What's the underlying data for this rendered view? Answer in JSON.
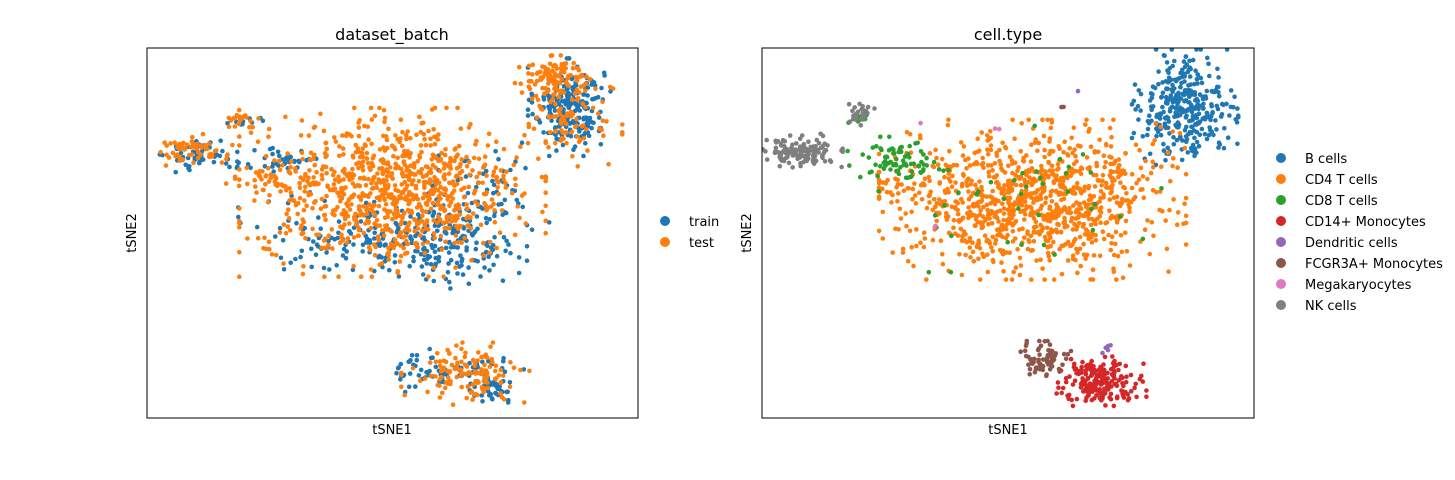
{
  "chart_data": [
    {
      "type": "scatter",
      "title": "dataset_batch",
      "xlabel": "tSNE1",
      "ylabel": "tSNE2",
      "xlim": [
        0,
        100
      ],
      "ylim": [
        0,
        100
      ],
      "ticks": false,
      "grid": false,
      "legend_position": "right",
      "series": [
        {
          "name": "train",
          "color": "#1f77b4",
          "clusters": [
            {
              "cx": 86,
              "cy": 84,
              "sx": 3.5,
              "sy": 5.5,
              "n": 230
            },
            {
              "cx": 11,
              "cy": 71,
              "sx": 3.5,
              "sy": 2.0,
              "n": 55
            },
            {
              "cx": 20,
              "cy": 80,
              "sx": 1.5,
              "sy": 1.0,
              "n": 10
            },
            {
              "cx": 28,
              "cy": 70,
              "sx": 4.0,
              "sy": 2.5,
              "n": 40
            },
            {
              "cx": 45,
              "cy": 49,
              "sx": 11.0,
              "sy": 5.0,
              "n": 150
            },
            {
              "cx": 63,
              "cy": 47,
              "sx": 6.0,
              "sy": 5.0,
              "n": 140
            },
            {
              "cx": 68,
              "cy": 60,
              "sx": 6.0,
              "sy": 6.0,
              "n": 70
            },
            {
              "cx": 58,
              "cy": 13,
              "sx": 3.5,
              "sy": 2.5,
              "n": 50
            },
            {
              "cx": 70,
              "cy": 10,
              "sx": 3.0,
              "sy": 3.0,
              "n": 60
            }
          ]
        },
        {
          "name": "test",
          "color": "#ff7f0e",
          "clusters": [
            {
              "cx": 83,
              "cy": 92,
              "sx": 3.5,
              "sy": 2.5,
              "n": 110
            },
            {
              "cx": 86,
              "cy": 80,
              "sx": 4.5,
              "sy": 5.0,
              "n": 90
            },
            {
              "cx": 9,
              "cy": 72,
              "sx": 3.5,
              "sy": 2.0,
              "n": 60
            },
            {
              "cx": 20,
              "cy": 81,
              "sx": 1.5,
              "sy": 1.0,
              "n": 20
            },
            {
              "cx": 25,
              "cy": 64,
              "sx": 4.0,
              "sy": 2.5,
              "n": 40
            },
            {
              "cx": 50,
              "cy": 61,
              "sx": 13.0,
              "sy": 9.5,
              "n": 900
            },
            {
              "cx": 65,
              "cy": 12,
              "sx": 5.5,
              "sy": 3.5,
              "n": 130
            }
          ]
        }
      ]
    },
    {
      "type": "scatter",
      "title": "cell.type",
      "xlabel": "tSNE1",
      "ylabel": "tSNE2",
      "xlim": [
        0,
        100
      ],
      "ylim": [
        0,
        100
      ],
      "ticks": false,
      "grid": false,
      "legend_position": "right",
      "series": [
        {
          "name": "B cells",
          "color": "#1f77b4",
          "clusters": [
            {
              "cx": 86,
              "cy": 84,
              "sx": 4.5,
              "sy": 6.5,
              "n": 340
            }
          ]
        },
        {
          "name": "CD4 T cells",
          "color": "#ff7f0e",
          "clusters": [
            {
              "cx": 55,
              "cy": 59,
              "sx": 13.0,
              "sy": 9.0,
              "n": 1050
            },
            {
              "cx": 28,
              "cy": 63,
              "sx": 3.0,
              "sy": 1.5,
              "n": 18
            }
          ]
        },
        {
          "name": "CD8 T cells",
          "color": "#2ca02c",
          "clusters": [
            {
              "cx": 27,
              "cy": 70,
              "sx": 4.0,
              "sy": 2.5,
              "n": 80
            },
            {
              "cx": 21,
              "cy": 81,
              "sx": 1.5,
              "sy": 1.0,
              "n": 12
            },
            {
              "cx": 50,
              "cy": 61,
              "sx": 13.0,
              "sy": 9.0,
              "n": 40
            }
          ]
        },
        {
          "name": "CD14+ Monocytes",
          "color": "#d62728",
          "clusters": [
            {
              "cx": 69,
              "cy": 10,
              "sx": 3.8,
              "sy": 2.8,
              "n": 200
            }
          ]
        },
        {
          "name": "Dendritic cells",
          "color": "#9467bd",
          "clusters": [
            {
              "cx": 70,
              "cy": 19,
              "sx": 0.5,
              "sy": 0.6,
              "n": 6
            },
            {
              "cx": 64,
              "cy": 88,
              "sx": 0.3,
              "sy": 0.3,
              "n": 1
            }
          ]
        },
        {
          "name": "FCGR3A+ Monocytes",
          "color": "#8c564b",
          "clusters": [
            {
              "cx": 57,
              "cy": 16,
              "sx": 2.5,
              "sy": 2.0,
              "n": 70
            },
            {
              "cx": 61,
              "cy": 84,
              "sx": 0.5,
              "sy": 0.5,
              "n": 2
            }
          ]
        },
        {
          "name": "Megakaryocytes",
          "color": "#e377c2",
          "clusters": [
            {
              "cx": 32,
              "cy": 80,
              "sx": 0.3,
              "sy": 0.3,
              "n": 1
            },
            {
              "cx": 48,
              "cy": 78,
              "sx": 0.5,
              "sy": 0.5,
              "n": 2
            },
            {
              "cx": 35,
              "cy": 52,
              "sx": 0.5,
              "sy": 0.5,
              "n": 2
            }
          ]
        },
        {
          "name": "NK cells",
          "color": "#7f7f7f",
          "clusters": [
            {
              "cx": 8,
              "cy": 72,
              "sx": 3.5,
              "sy": 2.0,
              "n": 140
            },
            {
              "cx": 20,
              "cy": 82,
              "sx": 1.5,
              "sy": 1.2,
              "n": 25
            }
          ]
        }
      ]
    }
  ]
}
